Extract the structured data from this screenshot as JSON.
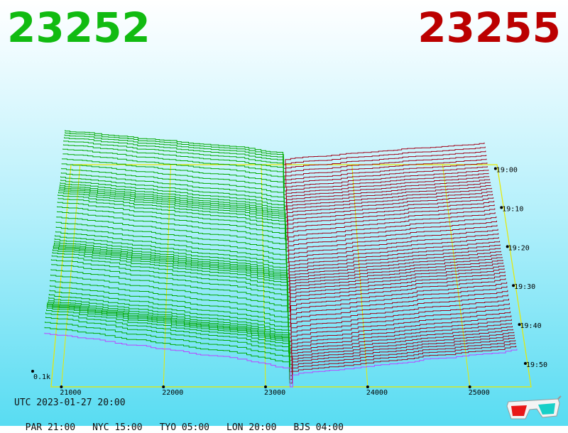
{
  "header": {
    "bid_price": "23252",
    "ask_price": "23255",
    "bid_color": "#11bb11",
    "ask_color": "#bb0000"
  },
  "footer": {
    "utc": "UTC 2023-01-27 20:00",
    "timezones": [
      {
        "label": "PAR 21:00"
      },
      {
        "label": "NYC 15:00"
      },
      {
        "label": "TYO 05:00"
      },
      {
        "label": "LON 20:00"
      },
      {
        "label": "BJS 04:00"
      }
    ],
    "icon": "3d-glasses-icon"
  },
  "chart_data": {
    "type": "area",
    "x_ticks": [
      21000,
      22000,
      23000,
      24000,
      25000
    ],
    "time_ticks": [
      "19:00",
      "19:10",
      "19:20",
      "19:30",
      "19:40",
      "19:50"
    ],
    "depth_label": "0.1k",
    "bid_color": "#00a800",
    "ask_color": "#a00018",
    "latest_bid_color": "#bb44ff",
    "grid_color": "#e8e800",
    "grid": true
  }
}
